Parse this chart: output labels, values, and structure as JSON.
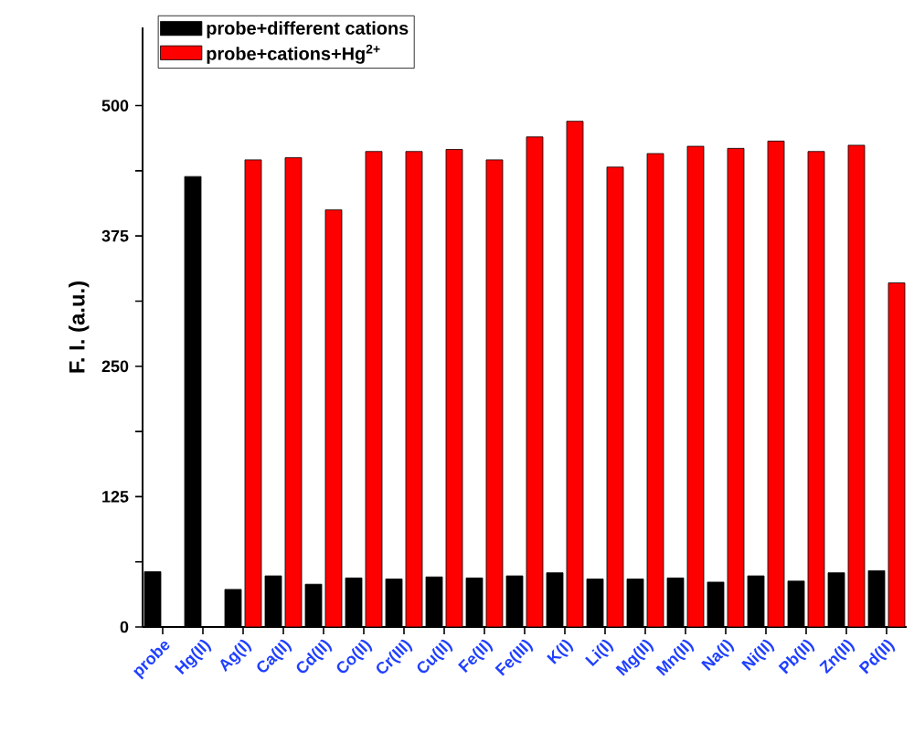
{
  "chart_data": {
    "type": "bar",
    "ylabel": "F. I. (a.u.)",
    "categories": [
      "probe",
      "Hg(II)",
      "Ag(I)",
      "Ca(II)",
      "Cd(II)",
      "Co(II)",
      "Cr(III)",
      "Cu(II)",
      "Fe(II)",
      "Fe(III)",
      "K(I)",
      "Li(I)",
      "Mg(II)",
      "Mn(II)",
      "Na(I)",
      "Ni(II)",
      "Pb(II)",
      "Zn(II)",
      "Pd(II)"
    ],
    "series": [
      {
        "name": "probe+different cations",
        "color": "#000000",
        "values": [
          53,
          432,
          36,
          49,
          41,
          47,
          46,
          48,
          47,
          49,
          52,
          46,
          46,
          47,
          43,
          49,
          44,
          52,
          54
        ]
      },
      {
        "name": "probe+cations+Hg$^{2+}$",
        "color": "#ff0000",
        "values": [
          null,
          null,
          448,
          450,
          400,
          456,
          456,
          458,
          448,
          470,
          485,
          441,
          454,
          461,
          459,
          466,
          456,
          462,
          330
        ]
      }
    ],
    "ylim": [
      0,
      575
    ],
    "yticks": [
      0,
      {
        "value": 62.5,
        "label": null
      },
      125,
      {
        "value": 187.5,
        "label": null
      },
      250,
      {
        "value": 312.5,
        "label": null
      },
      375,
      {
        "value": 437.5,
        "label": null
      },
      500
    ],
    "grid": false,
    "legend": "top left"
  }
}
